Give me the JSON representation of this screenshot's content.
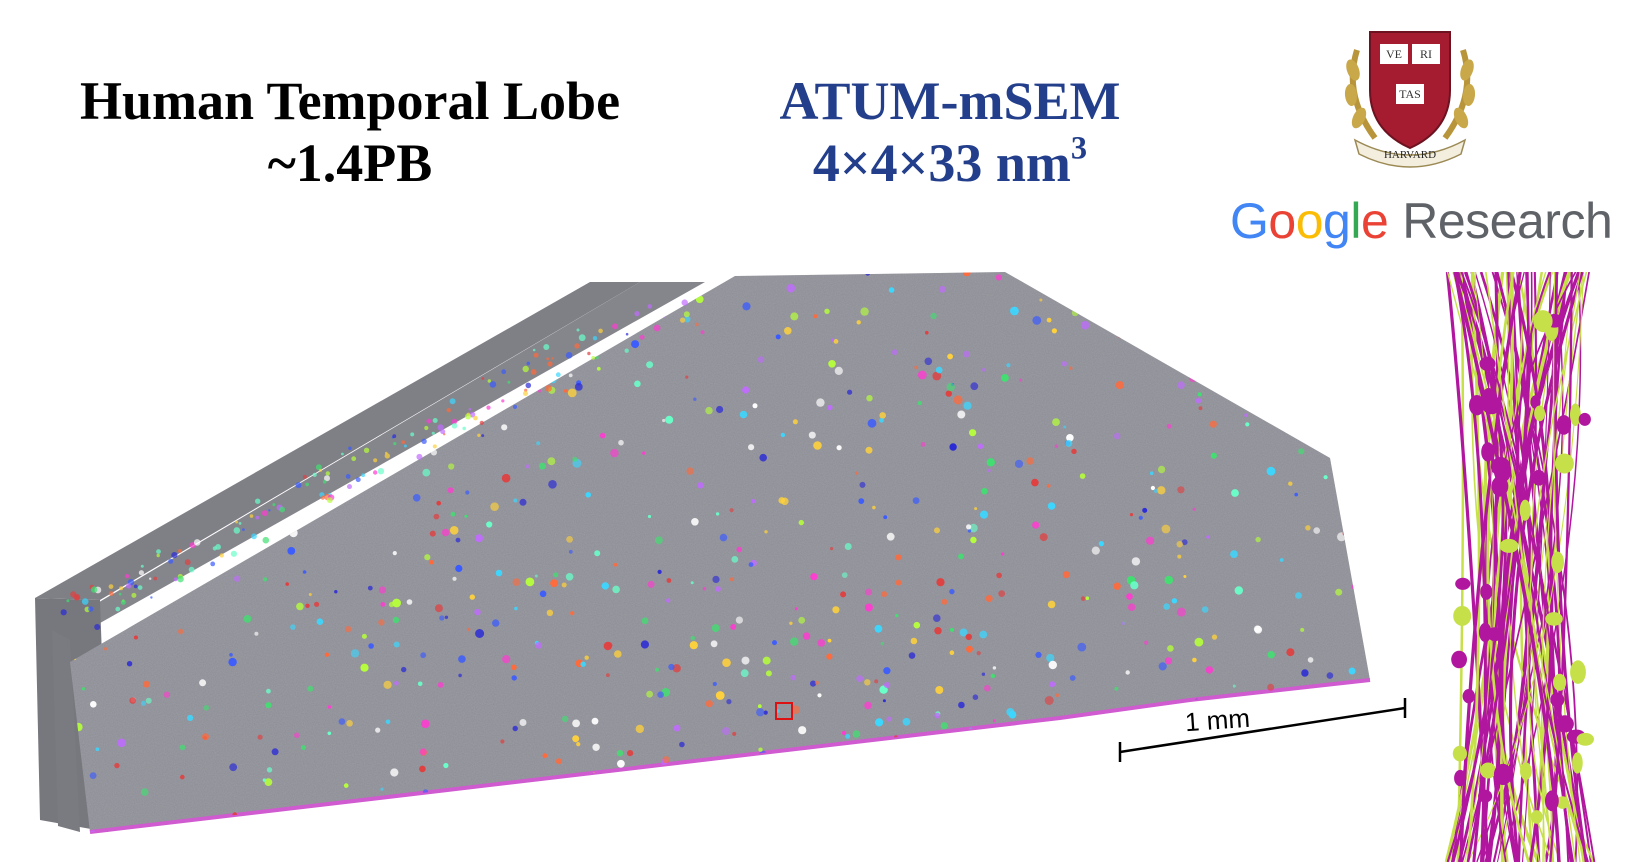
{
  "left_title": {
    "line1": "Human Temporal Lobe",
    "line2": "~1.4PB"
  },
  "right_title": {
    "line1": "ATUM-mSEM",
    "line2_base": "4×4×33 nm",
    "line2_exp": "3"
  },
  "harvard": {
    "shield_top": [
      "VE",
      "RI"
    ],
    "shield_bottom": "TAS",
    "ribbon": "HARVARD",
    "crimson": "#a51c30"
  },
  "google": {
    "letters": [
      "G",
      "o",
      "o",
      "g",
      "l",
      "e"
    ],
    "suffix": "Research"
  },
  "scale_bar": {
    "label": "1 mm"
  },
  "colors": {
    "title_blue": "#233f8c",
    "tissue_gray": "#8c8c94",
    "neuron_magenta": "#b0169e",
    "neuron_green": "#c6e04a"
  }
}
